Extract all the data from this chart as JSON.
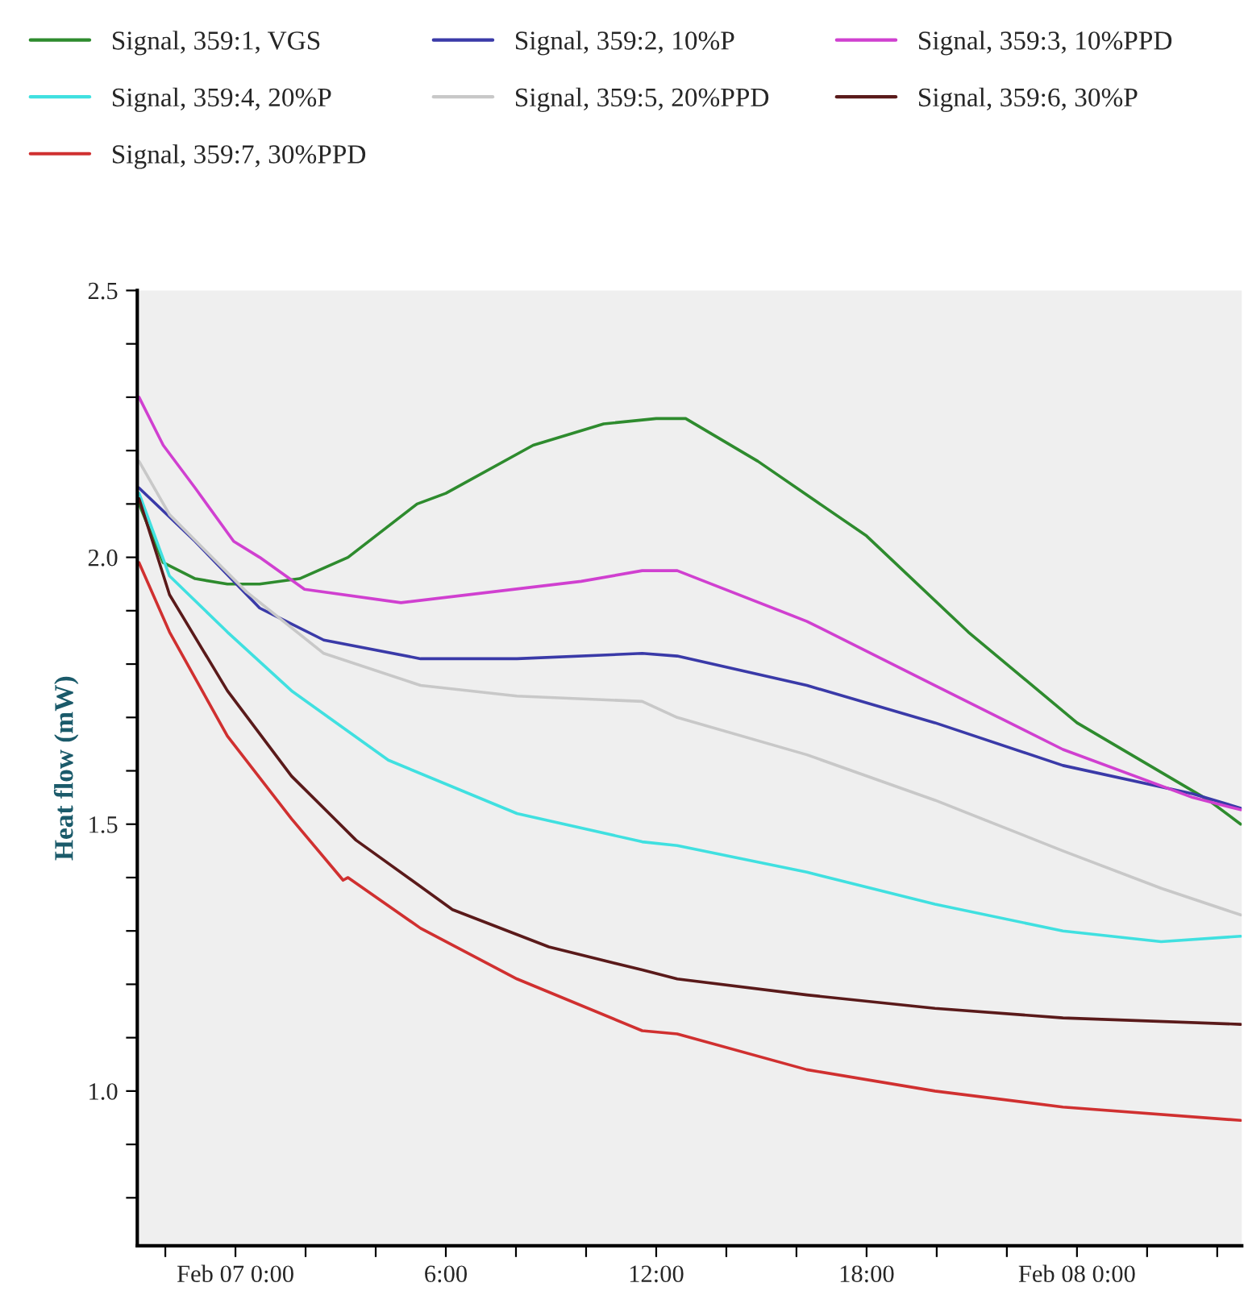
{
  "chart_data": {
    "type": "line",
    "ylabel": "Heat flow (mW)",
    "xlim": [
      -2.8,
      28.7
    ],
    "xticks": [
      {
        "value": -2,
        "label": null
      },
      {
        "value": 0,
        "label": "Feb 07 0:00"
      },
      {
        "value": 2,
        "label": null
      },
      {
        "value": 4,
        "label": null
      },
      {
        "value": 6,
        "label": "6:00"
      },
      {
        "value": 8,
        "label": null
      },
      {
        "value": 10,
        "label": null
      },
      {
        "value": 12,
        "label": "12:00"
      },
      {
        "value": 14,
        "label": null
      },
      {
        "value": 16,
        "label": null
      },
      {
        "value": 18,
        "label": "18:00"
      },
      {
        "value": 20,
        "label": null
      },
      {
        "value": 22,
        "label": null
      },
      {
        "value": 24,
        "label": "Feb 08 0:00"
      },
      {
        "value": 26,
        "label": null
      },
      {
        "value": 28,
        "label": null
      }
    ],
    "ylim": [
      0.71,
      2.5
    ],
    "yticks": [
      {
        "value": 0.8,
        "label": null
      },
      {
        "value": 0.9,
        "label": null
      },
      {
        "value": 1.0,
        "label": "1.0"
      },
      {
        "value": 1.1,
        "label": null
      },
      {
        "value": 1.2,
        "label": null
      },
      {
        "value": 1.3,
        "label": null
      },
      {
        "value": 1.4,
        "label": null
      },
      {
        "value": 1.5,
        "label": "1.5"
      },
      {
        "value": 1.6,
        "label": null
      },
      {
        "value": 1.7,
        "label": null
      },
      {
        "value": 1.8,
        "label": null
      },
      {
        "value": 1.9,
        "label": null
      },
      {
        "value": 2.0,
        "label": "2.0"
      },
      {
        "value": 2.1,
        "label": null
      },
      {
        "value": 2.2,
        "label": null
      },
      {
        "value": 2.3,
        "label": null
      },
      {
        "value": 2.4,
        "label": null
      },
      {
        "value": 2.5,
        "label": "2.5"
      }
    ],
    "grid": false,
    "legend": "top",
    "series": [
      {
        "name": "Signal, 359:1, VGS",
        "color": "#2e8b2e",
        "marker": "none",
        "x": [
          -2.75,
          -2.06,
          -1.15,
          -0.23,
          0.69,
          1.83,
          3.21,
          5.18,
          6.0,
          8.49,
          10.5,
          12.0,
          12.84,
          14.9,
          18.0,
          20.9,
          24.0,
          27.75,
          28.67
        ],
        "values": [
          2.1,
          1.99,
          1.96,
          1.95,
          1.95,
          1.96,
          2.0,
          2.1,
          2.12,
          2.21,
          2.25,
          2.26,
          2.26,
          2.18,
          2.04,
          1.86,
          1.69,
          1.545,
          1.5
        ]
      },
      {
        "name": "Signal, 359:2, 10%P",
        "color": "#3a3aa8",
        "marker": "none",
        "x": [
          -2.75,
          -1.15,
          0.69,
          2.52,
          5.28,
          8.03,
          11.6,
          12.6,
          16.3,
          19.95,
          23.6,
          27.3,
          28.67
        ],
        "values": [
          2.13,
          2.03,
          1.905,
          1.845,
          1.81,
          1.81,
          1.82,
          1.815,
          1.76,
          1.69,
          1.61,
          1.557,
          1.53
        ]
      },
      {
        "name": "Signal, 359:3, 10%PPD",
        "color": "#d040d0",
        "marker": "none",
        "x": [
          -2.75,
          -2.06,
          -1.15,
          -0.05,
          0.69,
          1.97,
          4.72,
          9.86,
          11.6,
          12.6,
          16.3,
          19.95,
          23.6,
          27.3,
          28.67
        ],
        "values": [
          2.3,
          2.21,
          2.13,
          2.03,
          2.0,
          1.94,
          1.915,
          1.955,
          1.975,
          1.975,
          1.88,
          1.76,
          1.64,
          1.55,
          1.527
        ]
      },
      {
        "name": "Signal, 359:4, 20%P",
        "color": "#40e0e0",
        "x": [
          -2.75,
          -1.88,
          -0.23,
          1.6,
          4.36,
          8.03,
          11.6,
          12.6,
          16.3,
          19.95,
          23.6,
          26.4,
          28.67
        ],
        "values": [
          2.12,
          1.965,
          1.86,
          1.75,
          1.62,
          1.52,
          1.467,
          1.46,
          1.41,
          1.35,
          1.3,
          1.28,
          1.29
        ]
      },
      {
        "name": "Signal, 359:5, 20%PPD",
        "color": "#c8c8c8",
        "x": [
          -2.75,
          -1.88,
          0.32,
          2.52,
          5.28,
          8.03,
          11.6,
          12.6,
          16.3,
          19.95,
          23.6,
          26.4,
          28.67
        ],
        "values": [
          2.18,
          2.08,
          1.935,
          1.82,
          1.76,
          1.74,
          1.73,
          1.7,
          1.63,
          1.545,
          1.45,
          1.38,
          1.33
        ]
      },
      {
        "name": "Signal, 359:6, 30%P",
        "color": "#5a1a1a",
        "x": [
          -2.75,
          -1.88,
          -0.23,
          1.6,
          3.44,
          6.19,
          8.94,
          11.6,
          12.6,
          16.3,
          19.95,
          23.6,
          28.67
        ],
        "values": [
          2.11,
          1.93,
          1.75,
          1.59,
          1.47,
          1.34,
          1.27,
          1.227,
          1.21,
          1.18,
          1.155,
          1.137,
          1.125
        ]
      },
      {
        "name": "Signal, 359:7, 30%PPD",
        "color": "#d03030",
        "x": [
          -2.75,
          -1.88,
          -0.23,
          1.6,
          3.07,
          3.21,
          5.28,
          8.03,
          11.6,
          12.6,
          16.3,
          19.95,
          23.6,
          28.67
        ],
        "values": [
          1.99,
          1.86,
          1.665,
          1.51,
          1.395,
          1.4,
          1.305,
          1.21,
          1.113,
          1.107,
          1.04,
          1.0,
          0.97,
          0.945
        ]
      }
    ]
  }
}
